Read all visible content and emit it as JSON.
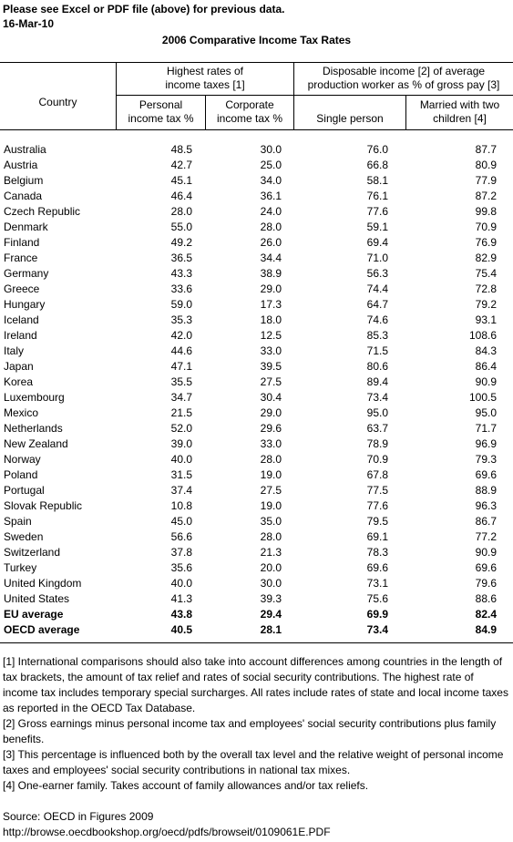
{
  "header": {
    "notice": "Please see Excel or PDF file (above) for previous data.",
    "date": "16-Mar-10"
  },
  "title": "2006 Comparative Income Tax Rates",
  "columns": {
    "country": "Country",
    "group1_line1": "Highest rates of",
    "group1_line2": "income taxes [1]",
    "group2_line1": "Disposable income [2] of average",
    "group2_line2": "production worker as % of gross pay [3]",
    "personal_line1": "Personal",
    "personal_line2": "income tax %",
    "corporate_line1": "Corporate",
    "corporate_line2": "income tax %",
    "single": "Single person",
    "married_line1": "Married with two",
    "married_line2": "children [4]"
  },
  "rows": [
    {
      "country": "Australia",
      "personal": "48.5",
      "corporate": "30.0",
      "single": "76.0",
      "married": "87.7"
    },
    {
      "country": "Austria",
      "personal": "42.7",
      "corporate": "25.0",
      "single": "66.8",
      "married": "80.9"
    },
    {
      "country": "Belgium",
      "personal": "45.1",
      "corporate": "34.0",
      "single": "58.1",
      "married": "77.9"
    },
    {
      "country": "Canada",
      "personal": "46.4",
      "corporate": "36.1",
      "single": "76.1",
      "married": "87.2"
    },
    {
      "country": "Czech Republic",
      "personal": "28.0",
      "corporate": "24.0",
      "single": "77.6",
      "married": "99.8"
    },
    {
      "country": "Denmark",
      "personal": "55.0",
      "corporate": "28.0",
      "single": "59.1",
      "married": "70.9"
    },
    {
      "country": "Finland",
      "personal": "49.2",
      "corporate": "26.0",
      "single": "69.4",
      "married": "76.9"
    },
    {
      "country": "France",
      "personal": "36.5",
      "corporate": "34.4",
      "single": "71.0",
      "married": "82.9"
    },
    {
      "country": "Germany",
      "personal": "43.3",
      "corporate": "38.9",
      "single": "56.3",
      "married": "75.4"
    },
    {
      "country": "Greece",
      "personal": "33.6",
      "corporate": "29.0",
      "single": "74.4",
      "married": "72.8"
    },
    {
      "country": "Hungary",
      "personal": "59.0",
      "corporate": "17.3",
      "single": "64.7",
      "married": "79.2"
    },
    {
      "country": "Iceland",
      "personal": "35.3",
      "corporate": "18.0",
      "single": "74.6",
      "married": "93.1"
    },
    {
      "country": "Ireland",
      "personal": "42.0",
      "corporate": "12.5",
      "single": "85.3",
      "married": "108.6"
    },
    {
      "country": "Italy",
      "personal": "44.6",
      "corporate": "33.0",
      "single": "71.5",
      "married": "84.3"
    },
    {
      "country": "Japan",
      "personal": "47.1",
      "corporate": "39.5",
      "single": "80.6",
      "married": "86.4"
    },
    {
      "country": "Korea",
      "personal": "35.5",
      "corporate": "27.5",
      "single": "89.4",
      "married": "90.9"
    },
    {
      "country": "Luxembourg",
      "personal": "34.7",
      "corporate": "30.4",
      "single": "73.4",
      "married": "100.5"
    },
    {
      "country": "Mexico",
      "personal": "21.5",
      "corporate": "29.0",
      "single": "95.0",
      "married": "95.0"
    },
    {
      "country": "Netherlands",
      "personal": "52.0",
      "corporate": "29.6",
      "single": "63.7",
      "married": "71.7"
    },
    {
      "country": "New Zealand",
      "personal": "39.0",
      "corporate": "33.0",
      "single": "78.9",
      "married": "96.9"
    },
    {
      "country": "Norway",
      "personal": "40.0",
      "corporate": "28.0",
      "single": "70.9",
      "married": "79.3"
    },
    {
      "country": "Poland",
      "personal": "31.5",
      "corporate": "19.0",
      "single": "67.8",
      "married": "69.6"
    },
    {
      "country": "Portugal",
      "personal": "37.4",
      "corporate": "27.5",
      "single": "77.5",
      "married": "88.9"
    },
    {
      "country": "Slovak Republic",
      "personal": "10.8",
      "corporate": "19.0",
      "single": "77.6",
      "married": "96.3"
    },
    {
      "country": "Spain",
      "personal": "45.0",
      "corporate": "35.0",
      "single": "79.5",
      "married": "86.7"
    },
    {
      "country": "Sweden",
      "personal": "56.6",
      "corporate": "28.0",
      "single": "69.1",
      "married": "77.2"
    },
    {
      "country": "Switzerland",
      "personal": "37.8",
      "corporate": "21.3",
      "single": "78.3",
      "married": "90.9"
    },
    {
      "country": "Turkey",
      "personal": "35.6",
      "corporate": "20.0",
      "single": "69.6",
      "married": "69.6"
    },
    {
      "country": "United Kingdom",
      "personal": "40.0",
      "corporate": "30.0",
      "single": "73.1",
      "married": "79.6"
    },
    {
      "country": "United States",
      "personal": "41.3",
      "corporate": "39.3",
      "single": "75.6",
      "married": "88.6"
    },
    {
      "country": "EU average",
      "personal": "43.8",
      "corporate": "29.4",
      "single": "69.9",
      "married": "82.4",
      "bold": true
    },
    {
      "country": "OECD average",
      "personal": "40.5",
      "corporate": "28.1",
      "single": "73.4",
      "married": "84.9",
      "bold": true
    }
  ],
  "notes": [
    "[1] International comparisons should also take into account differences among countries in the length of tax brackets, the amount of tax relief and rates of social security contributions. The highest rate of income tax includes temporary special surcharges. All rates include rates of state and local income taxes as reported in the OECD Tax Database.",
    "[2] Gross earnings minus personal income tax and employees' social security contributions plus family benefits.",
    "[3] This percentage is influenced both by the overall tax level and the relative weight of personal income taxes and employees' social security contributions in national tax mixes.",
    "[4] One-earner family. Takes account of family allowances and/or tax reliefs."
  ],
  "source": {
    "line1": "Source: OECD in Figures 2009",
    "line2": "http://browse.oecdbookshop.org/oecd/pdfs/browseit/0109061E.PDF"
  }
}
